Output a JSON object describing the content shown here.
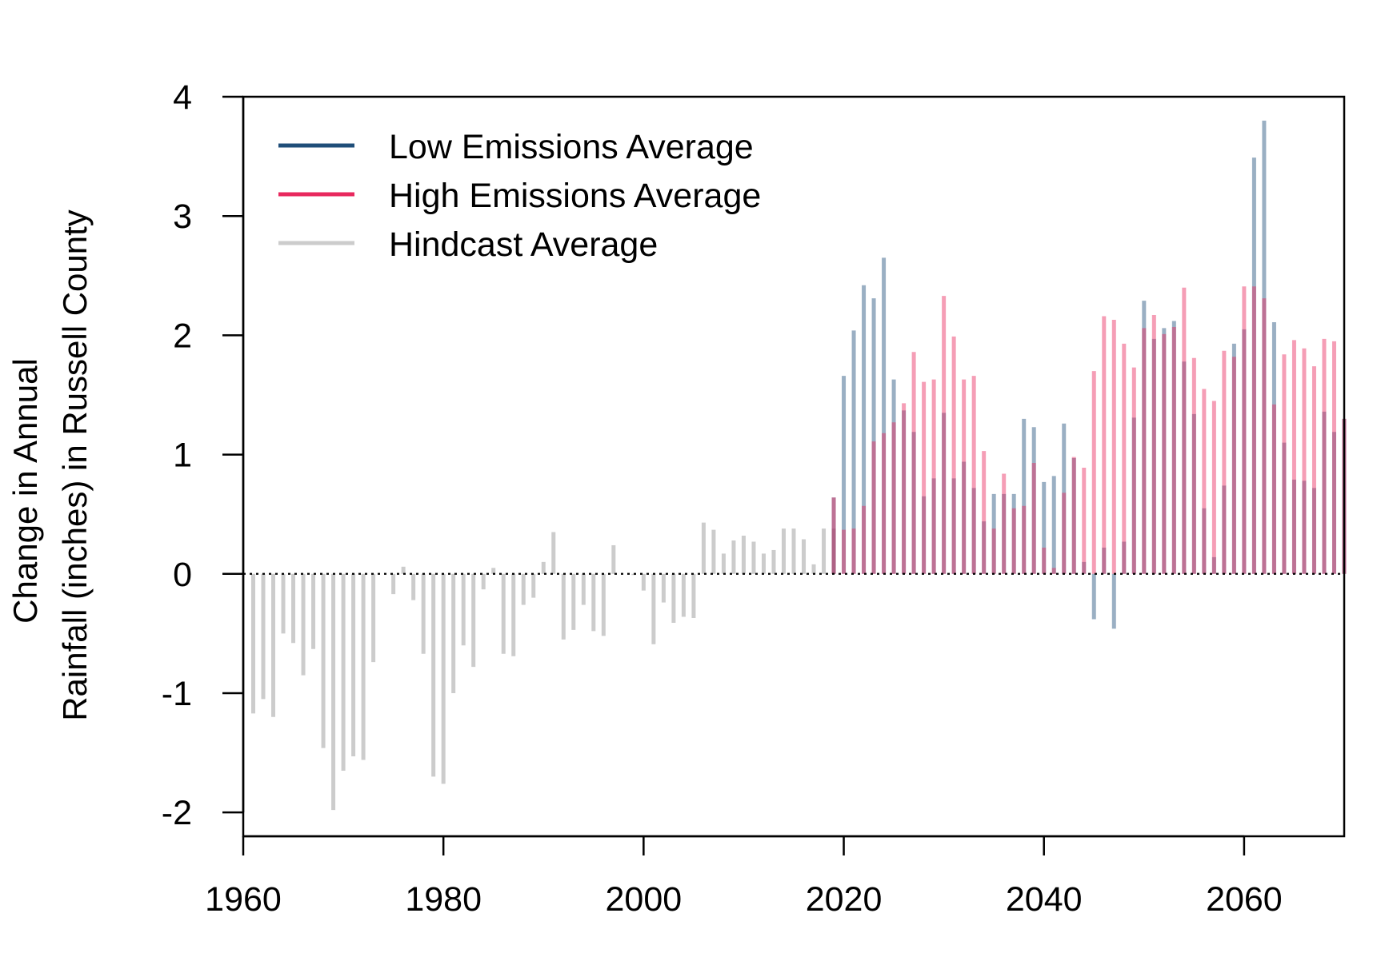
{
  "chart_data": {
    "type": "bar",
    "title": "",
    "xlabel": "",
    "ylabel_line1": "Change in Annual",
    "ylabel_line2": "Rainfall (inches) in Russell County",
    "xlim": [
      1960,
      2070
    ],
    "ylim": [
      -2.2,
      4.0
    ],
    "xticks": [
      "1960",
      "1980",
      "2000",
      "2020",
      "2040",
      "2060"
    ],
    "yticks": [
      "-2",
      "-1",
      "0",
      "1",
      "2",
      "3",
      "4"
    ],
    "legend_position": "top-left",
    "reference_line": 0,
    "legend": [
      {
        "label": "Low Emissions Average",
        "color": "#1f4e79"
      },
      {
        "label": "High Emissions Average",
        "color": "#e8285e"
      },
      {
        "label": "Hindcast Average",
        "color": "#cccccc"
      }
    ],
    "series": [
      {
        "name": "Hindcast Average",
        "color": "#cccccc",
        "x": [
          1961,
          1962,
          1963,
          1964,
          1965,
          1966,
          1967,
          1968,
          1969,
          1970,
          1971,
          1972,
          1973,
          1974,
          1975,
          1976,
          1977,
          1978,
          1979,
          1980,
          1981,
          1982,
          1983,
          1984,
          1985,
          1986,
          1987,
          1988,
          1989,
          1990,
          1991,
          1992,
          1993,
          1994,
          1995,
          1996,
          1997,
          1998,
          1999,
          2000,
          2001,
          2002,
          2003,
          2004,
          2005,
          2006,
          2007,
          2008,
          2009,
          2010,
          2011,
          2012,
          2013,
          2014,
          2015,
          2016,
          2017,
          2018,
          2019
        ],
        "values": [
          -1.17,
          -1.05,
          -1.2,
          -0.5,
          -0.58,
          -0.85,
          -0.63,
          -1.46,
          -1.98,
          -1.65,
          -1.53,
          -1.56,
          -0.74,
          0.0,
          -0.17,
          0.06,
          -0.22,
          -0.67,
          -1.7,
          -1.76,
          -1.0,
          -0.6,
          -0.78,
          -0.13,
          0.05,
          -0.67,
          -0.69,
          -0.26,
          -0.2,
          0.1,
          0.35,
          -0.55,
          -0.47,
          -0.26,
          -0.48,
          -0.52,
          0.24,
          0.0,
          -0.01,
          -0.14,
          -0.59,
          -0.24,
          -0.41,
          -0.36,
          -0.37,
          0.43,
          0.37,
          0.17,
          0.28,
          0.32,
          0.27,
          0.17,
          0.2,
          0.38,
          0.38,
          0.29,
          0.08,
          0.38,
          0.38
        ]
      },
      {
        "name": "Low Emissions Average",
        "color": "#1f4e79",
        "x": [
          2019,
          2020,
          2021,
          2022,
          2023,
          2024,
          2025,
          2026,
          2027,
          2028,
          2029,
          2030,
          2031,
          2032,
          2033,
          2034,
          2035,
          2036,
          2037,
          2038,
          2039,
          2040,
          2041,
          2042,
          2043,
          2044,
          2045,
          2046,
          2047,
          2048,
          2049,
          2050,
          2051,
          2052,
          2053,
          2054,
          2055,
          2056,
          2057,
          2058,
          2059,
          2060,
          2061,
          2062,
          2063,
          2064,
          2065,
          2066,
          2067,
          2068,
          2069,
          2070
        ],
        "values": [
          0.64,
          1.66,
          2.04,
          2.42,
          2.31,
          2.65,
          1.63,
          1.37,
          1.19,
          0.65,
          0.8,
          1.35,
          0.8,
          0.94,
          0.72,
          0.44,
          0.67,
          0.67,
          0.67,
          1.3,
          1.23,
          0.77,
          0.82,
          1.26,
          0.97,
          0.1,
          -0.38,
          0.22,
          -0.46,
          0.27,
          1.31,
          2.29,
          1.97,
          2.06,
          2.12,
          1.78,
          1.34,
          0.55,
          0.14,
          0.74,
          1.93,
          2.05,
          3.49,
          3.8,
          2.11,
          1.1,
          0.79,
          0.78,
          0.72,
          1.36,
          1.19,
          1.3
        ]
      },
      {
        "name": "High Emissions Average",
        "color": "#e8285e",
        "x": [
          2019,
          2020,
          2021,
          2022,
          2023,
          2024,
          2025,
          2026,
          2027,
          2028,
          2029,
          2030,
          2031,
          2032,
          2033,
          2034,
          2035,
          2036,
          2037,
          2038,
          2039,
          2040,
          2041,
          2042,
          2043,
          2044,
          2045,
          2046,
          2047,
          2048,
          2049,
          2050,
          2051,
          2052,
          2053,
          2054,
          2055,
          2056,
          2057,
          2058,
          2059,
          2060,
          2061,
          2062,
          2063,
          2064,
          2065,
          2066,
          2067,
          2068,
          2069,
          2070
        ],
        "values": [
          0.64,
          0.37,
          0.38,
          0.57,
          1.11,
          1.18,
          1.27,
          1.43,
          1.86,
          1.61,
          1.63,
          2.33,
          1.99,
          1.63,
          1.66,
          1.03,
          0.38,
          0.84,
          0.55,
          0.57,
          0.93,
          0.22,
          0.05,
          0.68,
          0.98,
          0.89,
          1.7,
          2.16,
          2.13,
          1.93,
          1.73,
          2.06,
          2.17,
          2.01,
          2.07,
          2.4,
          1.81,
          1.55,
          1.45,
          1.87,
          1.82,
          2.41,
          2.41,
          2.31,
          1.42,
          1.84,
          1.96,
          1.89,
          1.74,
          1.97,
          1.95,
          1.3
        ]
      }
    ]
  }
}
